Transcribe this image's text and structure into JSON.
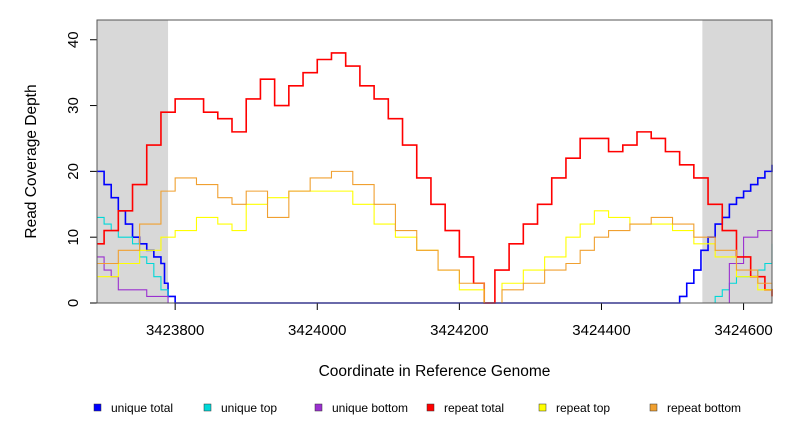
{
  "chart_data": {
    "type": "line",
    "xlabel": "Coordinate in Reference Genome",
    "ylabel": "Read Coverage Depth",
    "xlim": [
      3423690,
      3424640
    ],
    "ylim": [
      0,
      43
    ],
    "xticks": [
      3423800,
      3424000,
      3424200,
      3424400,
      3424600
    ],
    "xtick_labels": [
      "3423800",
      "3424000",
      "3424200",
      "3424400",
      "3424600"
    ],
    "yticks": [
      0,
      10,
      20,
      30,
      40
    ],
    "ytick_labels": [
      "0",
      "10",
      "20",
      "30",
      "40"
    ],
    "shaded_regions": [
      [
        3423690,
        3423790
      ],
      [
        3424542,
        3424640
      ]
    ],
    "grid": false,
    "legend_position": "bottom",
    "series": [
      {
        "name": "unique total",
        "color": "#0000ff",
        "x": [
          3423690,
          3423700,
          3423710,
          3423720,
          3423730,
          3423740,
          3423750,
          3423760,
          3423770,
          3423780,
          3423785,
          3423790,
          3423800,
          3424500,
          3424510,
          3424520,
          3424530,
          3424540,
          3424550,
          3424560,
          3424570,
          3424580,
          3424590,
          3424600,
          3424610,
          3424620,
          3424630,
          3424640
        ],
        "y": [
          20,
          18,
          16,
          14,
          12,
          10,
          9,
          8,
          7,
          6,
          3,
          1,
          0,
          0,
          1,
          3,
          5,
          8,
          10,
          12,
          13,
          15,
          16,
          17,
          18,
          19,
          20,
          21
        ]
      },
      {
        "name": "unique top",
        "color": "#00d8d8",
        "x": [
          3423690,
          3423700,
          3423710,
          3423720,
          3423730,
          3423740,
          3423750,
          3423760,
          3423770,
          3423780,
          3423790,
          3424550,
          3424560,
          3424570,
          3424580,
          3424590,
          3424600,
          3424610,
          3424620,
          3424630,
          3424640
        ],
        "y": [
          13,
          12,
          11,
          10,
          10,
          9,
          7,
          6,
          4,
          2,
          0,
          0,
          1,
          2,
          3,
          4,
          4,
          4,
          5,
          6,
          9
        ]
      },
      {
        "name": "unique bottom",
        "color": "#9b30d0",
        "x": [
          3423690,
          3423700,
          3423710,
          3423720,
          3423740,
          3423760,
          3423780,
          3423790,
          3424560,
          3424580,
          3424600,
          3424620,
          3424640
        ],
        "y": [
          7,
          5,
          4,
          2,
          2,
          1,
          1,
          0,
          0,
          6,
          10,
          11,
          11
        ]
      },
      {
        "name": "repeat total",
        "color": "#ff0000",
        "x": [
          3423690,
          3423700,
          3423720,
          3423740,
          3423760,
          3423780,
          3423800,
          3423820,
          3423840,
          3423860,
          3423880,
          3423900,
          3423920,
          3423940,
          3423960,
          3423980,
          3424000,
          3424020,
          3424040,
          3424060,
          3424080,
          3424100,
          3424120,
          3424140,
          3424160,
          3424180,
          3424200,
          3424220,
          3424235,
          3424250,
          3424270,
          3424290,
          3424310,
          3424330,
          3424350,
          3424370,
          3424390,
          3424410,
          3424430,
          3424450,
          3424470,
          3424490,
          3424510,
          3424530,
          3424550,
          3424570,
          3424590,
          3424610,
          3424630,
          3424640
        ],
        "y": [
          9,
          11,
          14,
          18,
          24,
          29,
          31,
          31,
          29,
          28,
          26,
          31,
          34,
          30,
          33,
          35,
          37,
          38,
          36,
          33,
          31,
          28,
          24,
          19,
          15,
          11,
          7,
          3,
          0,
          5,
          9,
          12,
          15,
          19,
          22,
          25,
          25,
          23,
          24,
          26,
          25,
          23,
          21,
          19,
          15,
          11,
          7,
          4,
          2,
          1
        ]
      },
      {
        "name": "repeat top",
        "color": "#ffff00",
        "x": [
          3423690,
          3423720,
          3423750,
          3423780,
          3423800,
          3423830,
          3423860,
          3423880,
          3423900,
          3423930,
          3423960,
          3423990,
          3424020,
          3424050,
          3424080,
          3424110,
          3424140,
          3424170,
          3424200,
          3424235,
          3424260,
          3424290,
          3424320,
          3424350,
          3424370,
          3424390,
          3424410,
          3424440,
          3424470,
          3424500,
          3424530,
          3424560,
          3424590,
          3424620,
          3424640
        ],
        "y": [
          4,
          6,
          8,
          10,
          11,
          13,
          12,
          11,
          15,
          16,
          17,
          17,
          17,
          15,
          12,
          10,
          8,
          5,
          2,
          0,
          3,
          5,
          7,
          10,
          12,
          14,
          13,
          12,
          12,
          11,
          9,
          7,
          4,
          2,
          1
        ]
      },
      {
        "name": "repeat bottom",
        "color": "#f0a030",
        "x": [
          3423690,
          3423720,
          3423750,
          3423780,
          3423800,
          3423830,
          3423860,
          3423880,
          3423900,
          3423930,
          3423960,
          3423990,
          3424020,
          3424050,
          3424080,
          3424110,
          3424140,
          3424170,
          3424200,
          3424235,
          3424260,
          3424290,
          3424320,
          3424350,
          3424370,
          3424390,
          3424410,
          3424440,
          3424470,
          3424500,
          3424530,
          3424560,
          3424590,
          3424620,
          3424640
        ],
        "y": [
          6,
          8,
          12,
          17,
          19,
          18,
          16,
          15,
          17,
          13,
          17,
          19,
          20,
          18,
          15,
          11,
          8,
          5,
          3,
          0,
          2,
          3,
          5,
          6,
          8,
          10,
          11,
          12,
          13,
          12,
          10,
          8,
          5,
          3,
          2
        ]
      }
    ]
  }
}
